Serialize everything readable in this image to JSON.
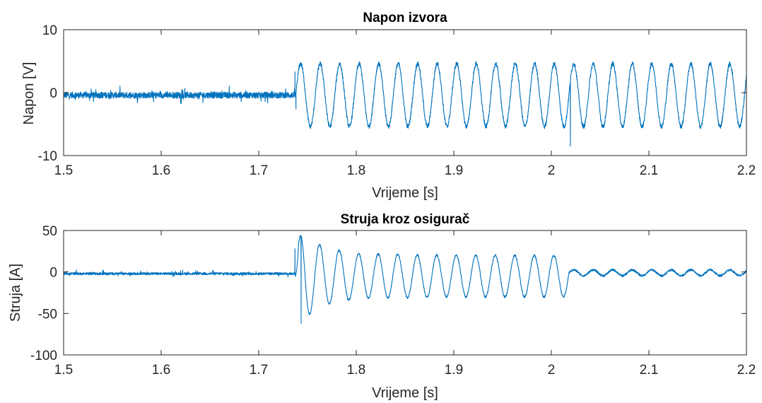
{
  "chart_data": [
    {
      "type": "line",
      "title": "Napon izvora",
      "xlabel": "Vrijeme [s]",
      "ylabel": "Napon [V]",
      "xlim": [
        1.5,
        2.2
      ],
      "ylim": [
        -10,
        10
      ],
      "xticks": [
        1.5,
        1.6,
        1.7,
        1.8,
        1.9,
        2.0,
        2.1,
        2.2
      ],
      "xtick_labels": [
        "1.5",
        "1.6",
        "1.7",
        "1.8",
        "1.9",
        "2",
        "2.1",
        "2.2"
      ],
      "yticks": [
        10,
        0,
        -10
      ],
      "ytick_labels": [
        "10",
        "0",
        "-10"
      ],
      "grid": false,
      "series": [
        {
          "color": "#0072BD",
          "segments": [
            {
              "kind": "flat",
              "x_start": 1.5,
              "x_end": 1.738,
              "level": -0.4,
              "noise": 0.5
            },
            {
              "kind": "sine",
              "x_start": 1.738,
              "x_end": 2.2,
              "amplitude": 5.0,
              "offset": -0.4,
              "frequency_hz": 50,
              "phase_ref": 1.738,
              "noise": 0.35
            }
          ],
          "spikes": [
            {
              "x": 1.7372,
              "y": 3.3
            },
            {
              "x": 1.7382,
              "y": -2.6
            },
            {
              "x": 2.0195,
              "y": -8.5
            }
          ]
        }
      ]
    },
    {
      "type": "line",
      "title": "Struja kroz osigurač",
      "xlabel": "Vrijeme [s]",
      "ylabel": "Struja [A]",
      "xlim": [
        1.5,
        2.2
      ],
      "ylim": [
        -100,
        50
      ],
      "xticks": [
        1.5,
        1.6,
        1.7,
        1.8,
        1.9,
        2.0,
        2.1,
        2.2
      ],
      "xtick_labels": [
        "1.5",
        "1.6",
        "1.7",
        "1.8",
        "1.9",
        "2",
        "2.1",
        "2.2"
      ],
      "yticks": [
        50,
        0,
        -50,
        -100
      ],
      "ytick_labels": [
        "50",
        "0",
        "-50",
        "-100"
      ],
      "grid": false,
      "series": [
        {
          "color": "#0072BD",
          "segments": [
            {
              "kind": "flat",
              "x_start": 1.5,
              "x_end": 1.7375,
              "level": -2.0,
              "noise": 1.5
            },
            {
              "kind": "decaying_sine",
              "x_start": 1.7375,
              "x_end": 2.018,
              "offset": -5.0,
              "frequency_hz": 50,
              "phase_ref": 1.7375,
              "amplitude_points": [
                [
                  1.7375,
                  0
                ],
                [
                  1.741,
                  45
                ],
                [
                  1.746,
                  55
                ],
                [
                  1.755,
                  42
                ],
                [
                  1.77,
                  34
                ],
                [
                  1.8,
                  27
                ],
                [
                  1.9,
                  25
                ],
                [
                  2.018,
                  25
                ]
              ],
              "noise": 1.2
            },
            {
              "kind": "sine",
              "x_start": 2.018,
              "x_end": 2.2,
              "amplitude": 3.5,
              "offset": -1.0,
              "frequency_hz": 50,
              "phase_ref": 2.018,
              "noise": 1.3
            }
          ],
          "spikes": [
            {
              "x": 1.7435,
              "y": -62
            },
            {
              "x": 1.7372,
              "y": 28
            }
          ]
        }
      ]
    }
  ]
}
